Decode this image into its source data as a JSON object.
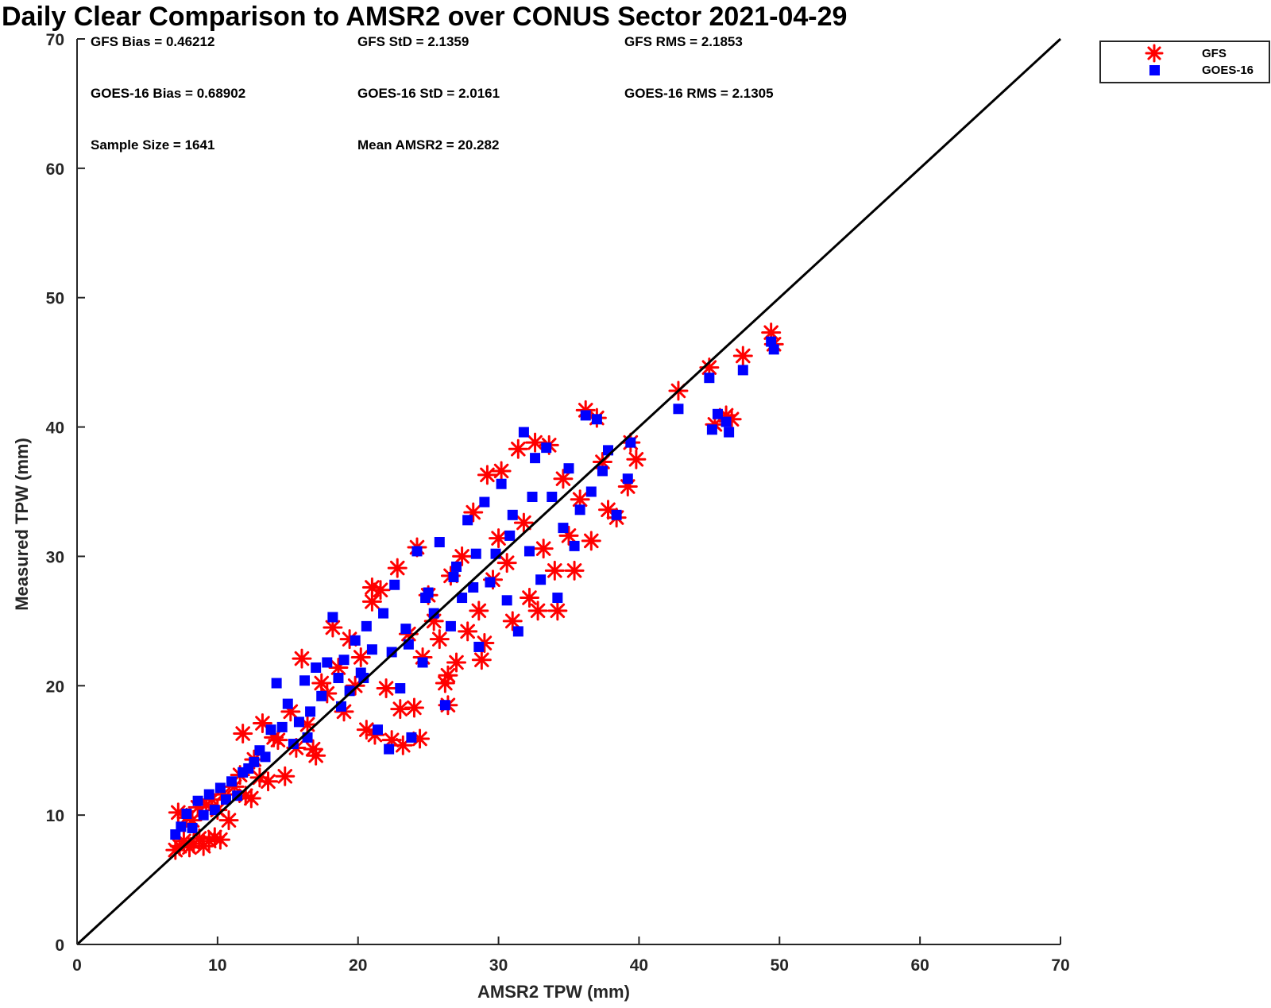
{
  "colors": {
    "gfs": "#ff0000",
    "goes": "#0000ff",
    "identity_line": "#000000",
    "axis": "#262626"
  },
  "chart_data": {
    "type": "scatter",
    "title": "Daily Clear Comparison to AMSR2 over CONUS Sector 2021-04-29",
    "xlabel": "AMSR2 TPW (mm)",
    "ylabel": "Measured TPW (mm)",
    "xlim": [
      0,
      70
    ],
    "ylim": [
      0,
      70
    ],
    "x_ticks": [
      "0",
      "10",
      "20",
      "30",
      "40",
      "50",
      "60",
      "70"
    ],
    "y_ticks": [
      "0",
      "10",
      "20",
      "30",
      "40",
      "50",
      "60",
      "70"
    ],
    "grid": false,
    "legend_position": "outside-top-right",
    "reference_line": {
      "from": [
        0,
        0
      ],
      "to": [
        70,
        70
      ]
    },
    "stats": [
      "GFS Bias = 0.46212",
      "GFS StD = 2.1359",
      "GFS RMS = 2.1853",
      "GOES-16 Bias = 0.68902",
      "GOES-16 StD = 2.0161",
      "GOES-16 RMS = 2.1305",
      "Sample Size = 1641",
      "Mean AMSR2 = 20.282"
    ],
    "series": [
      {
        "name": "GFS",
        "marker": "asterisk",
        "points": [
          [
            7.0,
            7.3
          ],
          [
            7.3,
            7.6
          ],
          [
            7.6,
            8.0
          ],
          [
            8.0,
            7.5
          ],
          [
            8.3,
            7.8
          ],
          [
            8.7,
            8.2
          ],
          [
            9.0,
            7.6
          ],
          [
            9.4,
            8.0
          ],
          [
            9.8,
            8.3
          ],
          [
            10.2,
            8.1
          ],
          [
            7.2,
            10.2
          ],
          [
            7.8,
            9.8
          ],
          [
            8.2,
            9.6
          ],
          [
            8.6,
            10.6
          ],
          [
            9.2,
            10.8
          ],
          [
            9.6,
            11.2
          ],
          [
            10.0,
            10.4
          ],
          [
            10.4,
            11.6
          ],
          [
            10.8,
            9.6
          ],
          [
            11.2,
            12.2
          ],
          [
            11.6,
            13.1
          ],
          [
            12.0,
            11.5
          ],
          [
            12.4,
            11.3
          ],
          [
            11.8,
            16.3
          ],
          [
            12.6,
            14.3
          ],
          [
            13.0,
            12.9
          ],
          [
            13.2,
            17.1
          ],
          [
            13.6,
            12.6
          ],
          [
            14.0,
            16.0
          ],
          [
            14.3,
            15.8
          ],
          [
            14.8,
            13.0
          ],
          [
            15.2,
            18.0
          ],
          [
            15.6,
            15.2
          ],
          [
            16.0,
            22.1
          ],
          [
            16.4,
            17.0
          ],
          [
            16.8,
            15.1
          ],
          [
            17.0,
            14.6
          ],
          [
            17.4,
            20.2
          ],
          [
            17.8,
            19.4
          ],
          [
            18.2,
            24.5
          ],
          [
            18.6,
            21.4
          ],
          [
            19.0,
            18.0
          ],
          [
            19.4,
            23.6
          ],
          [
            19.8,
            20.0
          ],
          [
            20.2,
            22.2
          ],
          [
            20.6,
            16.6
          ],
          [
            21.0,
            26.5
          ],
          [
            21.2,
            16.2
          ],
          [
            21.6,
            27.4
          ],
          [
            22.0,
            19.8
          ],
          [
            22.4,
            15.8
          ],
          [
            22.8,
            29.1
          ],
          [
            23.0,
            18.2
          ],
          [
            23.2,
            15.4
          ],
          [
            23.6,
            24.0
          ],
          [
            24.0,
            18.3
          ],
          [
            24.2,
            30.7
          ],
          [
            24.6,
            22.2
          ],
          [
            25.0,
            27.0
          ],
          [
            25.4,
            25.0
          ],
          [
            25.8,
            23.6
          ],
          [
            26.2,
            20.2
          ],
          [
            26.4,
            18.5
          ],
          [
            26.6,
            28.5
          ],
          [
            27.0,
            21.8
          ],
          [
            27.4,
            30.0
          ],
          [
            27.8,
            24.2
          ],
          [
            28.2,
            33.4
          ],
          [
            28.6,
            25.8
          ],
          [
            28.8,
            22.0
          ],
          [
            29.0,
            23.3
          ],
          [
            29.2,
            36.3
          ],
          [
            29.6,
            28.2
          ],
          [
            30.0,
            31.4
          ],
          [
            30.2,
            36.6
          ],
          [
            30.6,
            29.5
          ],
          [
            31.0,
            25.0
          ],
          [
            31.4,
            38.3
          ],
          [
            31.8,
            32.6
          ],
          [
            32.2,
            26.8
          ],
          [
            32.6,
            38.8
          ],
          [
            32.8,
            25.8
          ],
          [
            33.2,
            30.6
          ],
          [
            33.6,
            38.6
          ],
          [
            34.0,
            28.9
          ],
          [
            34.2,
            25.8
          ],
          [
            34.6,
            36.0
          ],
          [
            35.0,
            31.6
          ],
          [
            35.4,
            28.9
          ],
          [
            35.8,
            34.4
          ],
          [
            36.2,
            41.3
          ],
          [
            36.6,
            31.2
          ],
          [
            37.0,
            40.7
          ],
          [
            37.4,
            37.3
          ],
          [
            37.8,
            33.6
          ],
          [
            38.4,
            33.0
          ],
          [
            39.2,
            35.4
          ],
          [
            39.4,
            38.8
          ],
          [
            39.8,
            37.5
          ],
          [
            42.8,
            42.8
          ],
          [
            45.0,
            44.6
          ],
          [
            45.4,
            40.2
          ],
          [
            46.2,
            40.9
          ],
          [
            46.6,
            40.6
          ],
          [
            47.4,
            45.5
          ],
          [
            49.4,
            47.3
          ],
          [
            49.6,
            46.4
          ],
          [
            26.4,
            20.8
          ],
          [
            24.4,
            15.9
          ],
          [
            21.0,
            27.6
          ]
        ]
      },
      {
        "name": "GOES-16",
        "marker": "square",
        "points": [
          [
            7.0,
            8.5
          ],
          [
            7.4,
            9.1
          ],
          [
            7.8,
            10.1
          ],
          [
            8.2,
            9.0
          ],
          [
            8.6,
            11.1
          ],
          [
            9.0,
            10.0
          ],
          [
            9.4,
            11.6
          ],
          [
            9.8,
            10.4
          ],
          [
            10.2,
            12.1
          ],
          [
            10.6,
            11.2
          ],
          [
            11.0,
            12.6
          ],
          [
            11.4,
            11.5
          ],
          [
            11.8,
            13.3
          ],
          [
            12.2,
            13.6
          ],
          [
            12.6,
            14.1
          ],
          [
            13.0,
            15.0
          ],
          [
            13.4,
            14.5
          ],
          [
            13.8,
            16.6
          ],
          [
            14.2,
            20.2
          ],
          [
            14.6,
            16.8
          ],
          [
            15.0,
            18.6
          ],
          [
            15.4,
            15.5
          ],
          [
            15.8,
            17.2
          ],
          [
            16.2,
            20.4
          ],
          [
            16.6,
            18.0
          ],
          [
            17.0,
            21.4
          ],
          [
            17.4,
            19.2
          ],
          [
            17.8,
            21.8
          ],
          [
            18.2,
            25.3
          ],
          [
            18.6,
            20.6
          ],
          [
            19.0,
            22.0
          ],
          [
            19.4,
            19.6
          ],
          [
            19.8,
            23.5
          ],
          [
            20.2,
            21.0
          ],
          [
            20.6,
            24.6
          ],
          [
            21.0,
            22.8
          ],
          [
            21.4,
            16.6
          ],
          [
            21.8,
            25.6
          ],
          [
            22.2,
            15.1
          ],
          [
            22.6,
            27.8
          ],
          [
            23.0,
            19.8
          ],
          [
            23.4,
            24.4
          ],
          [
            23.8,
            16.0
          ],
          [
            24.2,
            30.4
          ],
          [
            24.6,
            21.8
          ],
          [
            25.0,
            27.2
          ],
          [
            25.4,
            25.6
          ],
          [
            25.8,
            31.1
          ],
          [
            26.2,
            18.5
          ],
          [
            26.6,
            24.6
          ],
          [
            27.0,
            29.2
          ],
          [
            27.4,
            26.8
          ],
          [
            27.8,
            32.8
          ],
          [
            28.2,
            27.6
          ],
          [
            28.6,
            23.0
          ],
          [
            29.0,
            34.2
          ],
          [
            29.4,
            28.0
          ],
          [
            29.8,
            30.2
          ],
          [
            30.2,
            35.6
          ],
          [
            30.6,
            26.6
          ],
          [
            31.0,
            33.2
          ],
          [
            31.4,
            24.2
          ],
          [
            31.8,
            39.6
          ],
          [
            32.2,
            30.4
          ],
          [
            32.6,
            37.6
          ],
          [
            33.0,
            28.2
          ],
          [
            33.4,
            38.4
          ],
          [
            33.8,
            34.6
          ],
          [
            34.2,
            26.8
          ],
          [
            34.6,
            32.2
          ],
          [
            35.0,
            36.8
          ],
          [
            35.4,
            30.8
          ],
          [
            35.8,
            33.6
          ],
          [
            36.2,
            40.9
          ],
          [
            36.6,
            35.0
          ],
          [
            37.0,
            40.6
          ],
          [
            37.4,
            36.6
          ],
          [
            37.8,
            38.2
          ],
          [
            38.4,
            33.2
          ],
          [
            39.2,
            36.0
          ],
          [
            39.4,
            38.8
          ],
          [
            42.8,
            41.4
          ],
          [
            45.0,
            43.8
          ],
          [
            45.2,
            39.8
          ],
          [
            45.6,
            41.0
          ],
          [
            46.2,
            40.4
          ],
          [
            46.4,
            39.6
          ],
          [
            47.4,
            44.4
          ],
          [
            49.4,
            46.6
          ],
          [
            49.6,
            46.0
          ],
          [
            24.8,
            26.8
          ],
          [
            22.4,
            22.6
          ],
          [
            20.4,
            20.6
          ],
          [
            18.8,
            18.4
          ],
          [
            16.4,
            16.0
          ],
          [
            26.8,
            28.4
          ],
          [
            28.4,
            30.2
          ],
          [
            30.8,
            31.6
          ],
          [
            23.6,
            23.2
          ],
          [
            32.4,
            34.6
          ]
        ]
      }
    ]
  }
}
